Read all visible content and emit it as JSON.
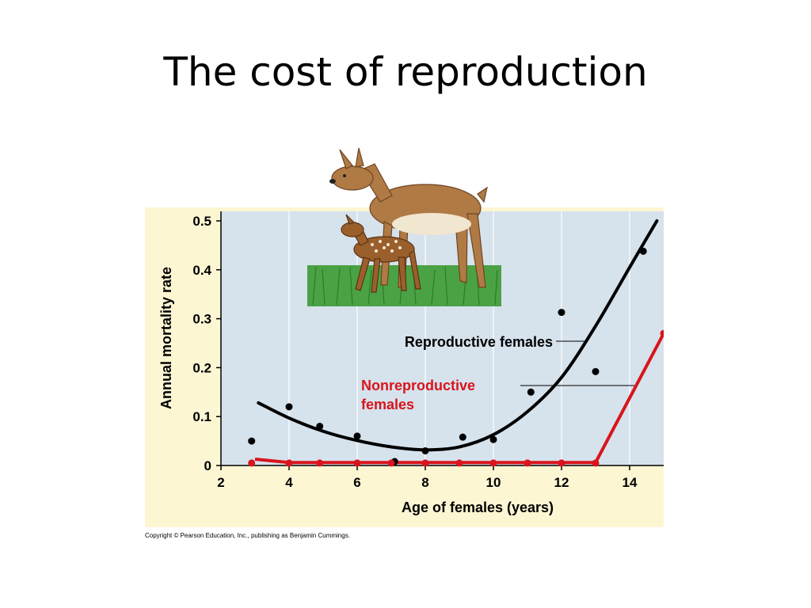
{
  "slide": {
    "title": "The cost of reproduction",
    "copyright": "Copyright © Pearson Education, Inc., publishing as Benjamin Cummings."
  },
  "colors": {
    "outer_panel": "#fdf6d3",
    "plot_area": "#d6e2ec",
    "reproductive": "#000000",
    "nonreproductive": "#d9141c",
    "grass": "#3f9a3a",
    "deer_body": "#b07a45"
  },
  "illustration": {
    "icon": "deer-doe-and-fawn-icon"
  },
  "chart_data": {
    "type": "scatter",
    "xlabel": "Age of females (years)",
    "ylabel": "Annual mortality rate",
    "xlim": [
      2,
      15
    ],
    "ylim": [
      0,
      0.5
    ],
    "x_ticks": [
      "2",
      "4",
      "6",
      "8",
      "10",
      "12",
      "14"
    ],
    "y_ticks": [
      "0",
      "0.1",
      "0.2",
      "0.3",
      "0.4",
      "0.5"
    ],
    "grid": "vertical-gridlines",
    "series": [
      {
        "name": "Reproductive females",
        "color": "#000000",
        "points": [
          {
            "x": 2.9,
            "y": 0.05
          },
          {
            "x": 4.0,
            "y": 0.12
          },
          {
            "x": 4.9,
            "y": 0.08
          },
          {
            "x": 6.0,
            "y": 0.06
          },
          {
            "x": 7.1,
            "y": 0.008
          },
          {
            "x": 8.0,
            "y": 0.03
          },
          {
            "x": 9.1,
            "y": 0.058
          },
          {
            "x": 10.0,
            "y": 0.053
          },
          {
            "x": 11.1,
            "y": 0.15
          },
          {
            "x": 12.0,
            "y": 0.313
          },
          {
            "x": 13.0,
            "y": 0.192
          },
          {
            "x": 14.4,
            "y": 0.438
          }
        ],
        "curve": [
          {
            "x": 3.1,
            "y": 0.128
          },
          {
            "x": 4.0,
            "y": 0.097
          },
          {
            "x": 5.0,
            "y": 0.07
          },
          {
            "x": 6.0,
            "y": 0.051
          },
          {
            "x": 7.0,
            "y": 0.038
          },
          {
            "x": 8.0,
            "y": 0.032
          },
          {
            "x": 9.0,
            "y": 0.038
          },
          {
            "x": 10.0,
            "y": 0.063
          },
          {
            "x": 11.0,
            "y": 0.11
          },
          {
            "x": 12.0,
            "y": 0.18
          },
          {
            "x": 13.0,
            "y": 0.285
          },
          {
            "x": 14.0,
            "y": 0.405
          },
          {
            "x": 14.8,
            "y": 0.5
          }
        ]
      },
      {
        "name": "Nonreproductive females",
        "name_lines": [
          "Nonreproductive",
          "females"
        ],
        "color": "#d9141c",
        "points": [
          {
            "x": 2.9,
            "y": 0.005
          },
          {
            "x": 4.0,
            "y": 0.005
          },
          {
            "x": 4.9,
            "y": 0.005
          },
          {
            "x": 6.0,
            "y": 0.005
          },
          {
            "x": 7.0,
            "y": 0.005
          },
          {
            "x": 8.0,
            "y": 0.005
          },
          {
            "x": 9.0,
            "y": 0.005
          },
          {
            "x": 10.0,
            "y": 0.005
          },
          {
            "x": 11.0,
            "y": 0.005
          },
          {
            "x": 12.0,
            "y": 0.005
          },
          {
            "x": 13.0,
            "y": 0.005
          },
          {
            "x": 15.0,
            "y": 0.27
          }
        ],
        "curve": [
          {
            "x": 3.0,
            "y": 0.013
          },
          {
            "x": 4.0,
            "y": 0.006
          },
          {
            "x": 13.0,
            "y": 0.006
          },
          {
            "x": 15.0,
            "y": 0.27
          }
        ]
      }
    ]
  }
}
